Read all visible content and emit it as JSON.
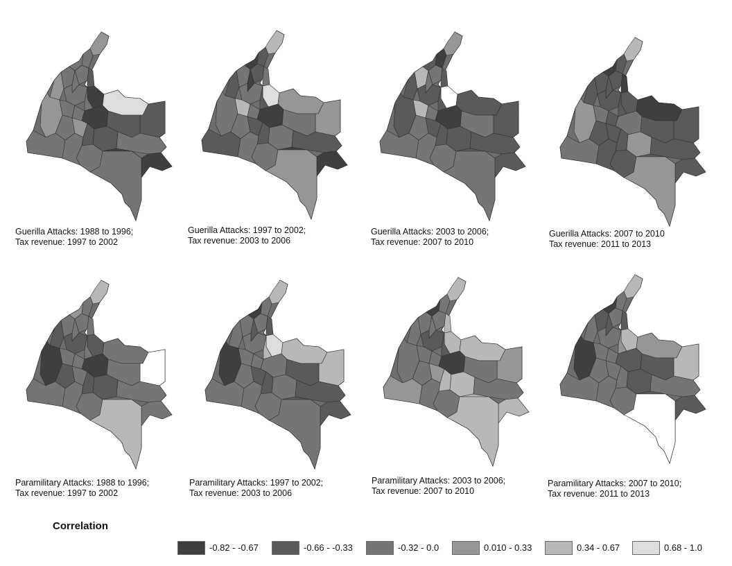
{
  "panels": [
    {
      "id": "g1",
      "caption": [
        "Guerilla Attacks: 1988 to 1996;",
        "Tax revenue: 1997 to 2002"
      ],
      "shades": [
        3,
        2,
        2,
        2,
        3,
        2,
        2,
        1,
        2,
        0,
        2,
        5,
        1,
        3,
        2,
        2,
        0,
        1,
        2,
        3,
        1,
        2,
        2,
        1,
        2,
        2,
        0,
        2
      ]
    },
    {
      "id": "g2",
      "caption": [
        "Guerilla Attacks: 1997 to 2002;",
        "Tax revenue: 2003 to 2006"
      ],
      "shades": [
        4,
        1,
        0,
        2,
        1,
        1,
        0,
        2,
        2,
        5,
        1,
        3,
        3,
        2,
        4,
        2,
        0,
        2,
        2,
        1,
        1,
        1,
        2,
        2,
        1,
        2,
        0,
        3
      ]
    },
    {
      "id": "g3",
      "caption": [
        "Guerilla Attacks: 2003 to 2006;",
        "Tax revenue: 2007 to 2010"
      ],
      "shades": [
        3,
        0,
        1,
        4,
        1,
        2,
        2,
        1,
        1,
        -1,
        1,
        1,
        1,
        1,
        4,
        2,
        0,
        2,
        2,
        1,
        1,
        2,
        2,
        1,
        1,
        2,
        1,
        2
      ]
    },
    {
      "id": "g4",
      "caption": [
        "Guerilla Attacks: 2007 to 2010",
        "Tax revenue: 2011 to 2013"
      ],
      "shades": [
        4,
        1,
        0,
        1,
        1,
        1,
        1,
        0,
        1,
        1,
        1,
        0,
        1,
        3,
        2,
        1,
        2,
        1,
        1,
        1,
        1,
        2,
        1,
        3,
        1,
        1,
        1,
        3
      ]
    },
    {
      "id": "p1",
      "caption": [
        "Paramilitary Attacks: 1988 to 1996;",
        "Tax revenue: 1997 to 2002"
      ],
      "shades": [
        4,
        2,
        3,
        2,
        1,
        2,
        2,
        2,
        1,
        1,
        2,
        2,
        -1,
        0,
        2,
        2,
        0,
        2,
        1,
        2,
        1,
        2,
        2,
        1,
        2,
        2,
        2,
        4
      ]
    },
    {
      "id": "p2",
      "caption": [
        "Paramilitary Attacks: 1997 to 2002;",
        "Tax revenue: 2003 to 2006"
      ],
      "shades": [
        4,
        2,
        0,
        2,
        2,
        2,
        1,
        1,
        2,
        5,
        4,
        4,
        4,
        0,
        2,
        2,
        2,
        1,
        2,
        1,
        1,
        2,
        2,
        2,
        1,
        2,
        1,
        2
      ]
    },
    {
      "id": "p3",
      "caption": [
        "Paramilitary Attacks: 2003 to 2006;",
        "Tax revenue: 2007 to 2010"
      ],
      "shades": [
        4,
        2,
        0,
        2,
        2,
        2,
        2,
        4,
        1,
        4,
        1,
        4,
        3,
        2,
        2,
        2,
        0,
        2,
        2,
        3,
        4,
        3,
        2,
        4,
        2,
        2,
        4,
        4
      ]
    },
    {
      "id": "p4",
      "caption": [
        "Paramilitary Attacks: 2007 to 2010;",
        "Tax revenue: 2011 to 2013"
      ],
      "shades": [
        4,
        2,
        0,
        1,
        2,
        2,
        1,
        1,
        2,
        4,
        3,
        3,
        4,
        0,
        2,
        2,
        1,
        1,
        2,
        2,
        2,
        2,
        2,
        1,
        2,
        2,
        1,
        -1
      ]
    }
  ],
  "legend": {
    "title": "Correlation",
    "items": [
      {
        "label": "-0.82 - -0.67",
        "color": "#3f3f3f"
      },
      {
        "label": "-0.66 - -0.33",
        "color": "#5a5a5a"
      },
      {
        "label": "-0.32 - 0.0",
        "color": "#757575"
      },
      {
        "label": "0.010 - 0.33",
        "color": "#969696"
      },
      {
        "label": "0.34 - 0.67",
        "color": "#b8b8b8"
      },
      {
        "label": "0.68 - 1.0",
        "color": "#dddddd"
      }
    ]
  }
}
